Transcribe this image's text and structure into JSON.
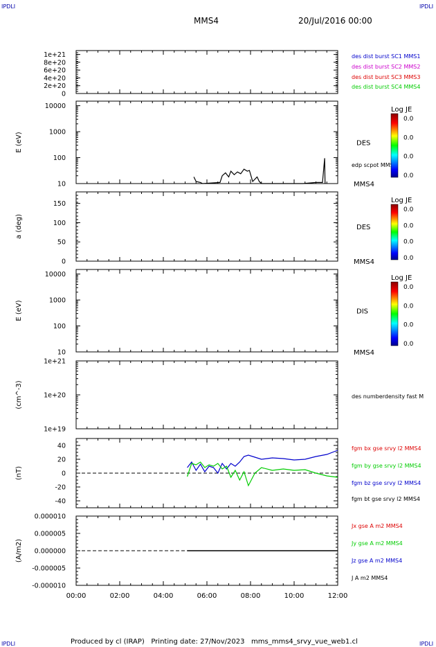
{
  "header": {
    "corner_label": "IPDLI",
    "spacecraft": "MMS4",
    "date_time": "20/Jul/2016 00:00"
  },
  "footer": {
    "text": "Produced by cl (IRAP)   Printing date: 27/Nov/2023   mms_mms4_srvy_vue_web1.cl"
  },
  "time_axis": {
    "ticks": [
      "00:00",
      "02:00",
      "04:00",
      "06:00",
      "08:00",
      "10:00",
      "12:00"
    ],
    "range_hours": [
      0,
      12
    ]
  },
  "colorbar": {
    "title": "Log JE",
    "labels": [
      "0.0",
      "0.0",
      "0.0",
      "0.0"
    ]
  },
  "colors": {
    "blue": "#0000cc",
    "magenta": "#cc00cc",
    "red": "#dd0000",
    "green": "#00cc00",
    "black": "#000000"
  },
  "chart_data": [
    {
      "type": "line",
      "panel": "des-dist-burst",
      "yticks": [
        "1e+21",
        "8e+20",
        "6e+20",
        "4e+20",
        "2e+20",
        "0"
      ],
      "ylim": [
        0,
        1.1e+21
      ],
      "legend": [
        "des dist burst SC1 MMS1",
        "des dist burst SC2 MMS2",
        "des dist burst SC3 MMS3",
        "des dist burst SC4 MMS4"
      ],
      "series": []
    },
    {
      "type": "heatmap",
      "panel": "des-energy",
      "ylabel": "E (eV)",
      "yscale": "log",
      "yticks": [
        "10000",
        "1000",
        "100",
        "10"
      ],
      "ylim": [
        10,
        15000
      ],
      "label": "DES",
      "overlay_label": "edp scpot MMS4",
      "instrument": "MMS4",
      "overlay": [
        [
          5.4,
          18
        ],
        [
          5.5,
          12
        ],
        [
          5.7,
          11
        ],
        [
          5.8,
          10
        ],
        [
          6.6,
          11
        ],
        [
          6.7,
          20
        ],
        [
          6.85,
          26
        ],
        [
          7.0,
          18
        ],
        [
          7.1,
          30
        ],
        [
          7.25,
          22
        ],
        [
          7.4,
          28
        ],
        [
          7.55,
          24
        ],
        [
          7.7,
          36
        ],
        [
          7.85,
          30
        ],
        [
          7.95,
          32
        ],
        [
          8.1,
          12
        ],
        [
          8.3,
          18
        ],
        [
          8.4,
          12
        ],
        [
          8.5,
          10
        ],
        [
          10.4,
          10
        ],
        [
          11.0,
          11
        ],
        [
          11.3,
          11
        ],
        [
          11.4,
          95
        ],
        [
          11.42,
          10
        ]
      ]
    },
    {
      "type": "heatmap",
      "panel": "des-pitch",
      "ylabel": "a (deg)",
      "yticks": [
        "150",
        "100",
        "50",
        "0"
      ],
      "ylim": [
        0,
        180
      ],
      "label": "DES",
      "instrument": "MMS4"
    },
    {
      "type": "heatmap",
      "panel": "dis-energy",
      "ylabel": "E (eV)",
      "yscale": "log",
      "yticks": [
        "10000",
        "1000",
        "100",
        "10"
      ],
      "ylim": [
        10,
        15000
      ],
      "label": "DIS",
      "instrument": "MMS4"
    },
    {
      "type": "line",
      "panel": "density",
      "ylabel": "(cm^-3)",
      "yscale": "log",
      "yticks": [
        "1e+21",
        "1e+20",
        "1e+19"
      ],
      "ylim": [
        1e+19,
        1e+21
      ],
      "legend": [
        "des numberdensity fast M"
      ],
      "series": []
    },
    {
      "type": "line",
      "panel": "fgm",
      "ylabel": "(nT)",
      "yticks": [
        "40",
        "20",
        "0",
        "-20",
        "-40"
      ],
      "ylim": [
        -50,
        50
      ],
      "legend": [
        "fgm bx gse srvy l2 MMS4",
        "fgm by gse srvy l2 MMS4",
        "fgm bz gse srvy l2 MMS4",
        "fgm bt gse srvy l2 MMS4"
      ],
      "series": [
        {
          "name": "fgm bz gse srvy l2 MMS4",
          "color": "blue",
          "x": [
            5.1,
            5.3,
            5.5,
            5.7,
            5.9,
            6.1,
            6.3,
            6.5,
            6.7,
            6.9,
            7.1,
            7.3,
            7.5,
            7.7,
            7.9,
            8.2,
            8.5,
            9.0,
            9.5,
            10.0,
            10.5,
            11.0,
            11.5,
            12.0
          ],
          "values": [
            8,
            16,
            4,
            13,
            2,
            10,
            8,
            0,
            14,
            6,
            14,
            10,
            16,
            24,
            26,
            23,
            20,
            22,
            21,
            19,
            20,
            24,
            27,
            33
          ]
        },
        {
          "name": "fgm by gse srvy l2 MMS4",
          "color": "green",
          "x": [
            5.1,
            5.3,
            5.5,
            5.7,
            5.9,
            6.1,
            6.3,
            6.5,
            6.7,
            6.9,
            7.1,
            7.3,
            7.5,
            7.7,
            7.9,
            8.2,
            8.5,
            9.0,
            9.5,
            10.0,
            10.5,
            11.0,
            11.5,
            12.0
          ],
          "values": [
            -5,
            14,
            12,
            16,
            8,
            12,
            10,
            14,
            6,
            10,
            -6,
            4,
            -10,
            2,
            -18,
            0,
            8,
            4,
            6,
            4,
            5,
            0,
            -4,
            -6
          ]
        }
      ]
    },
    {
      "type": "line",
      "panel": "current",
      "ylabel": "(A/m2)",
      "yticks": [
        "0.000010",
        "0.000005",
        "0.000000",
        "-0.000005",
        "-0.000010"
      ],
      "ylim": [
        -1e-05,
        1e-05
      ],
      "legend": [
        "Jx gse A m2 MMS4",
        "Jy gse A m2 MMS4",
        "Jz gse A m2 MMS4",
        "J A m2 MMS4"
      ],
      "series": [
        {
          "name": "J A m2 MMS4",
          "color": "black",
          "x": [
            5.1,
            12.0
          ],
          "values": [
            0,
            0
          ]
        }
      ]
    }
  ]
}
